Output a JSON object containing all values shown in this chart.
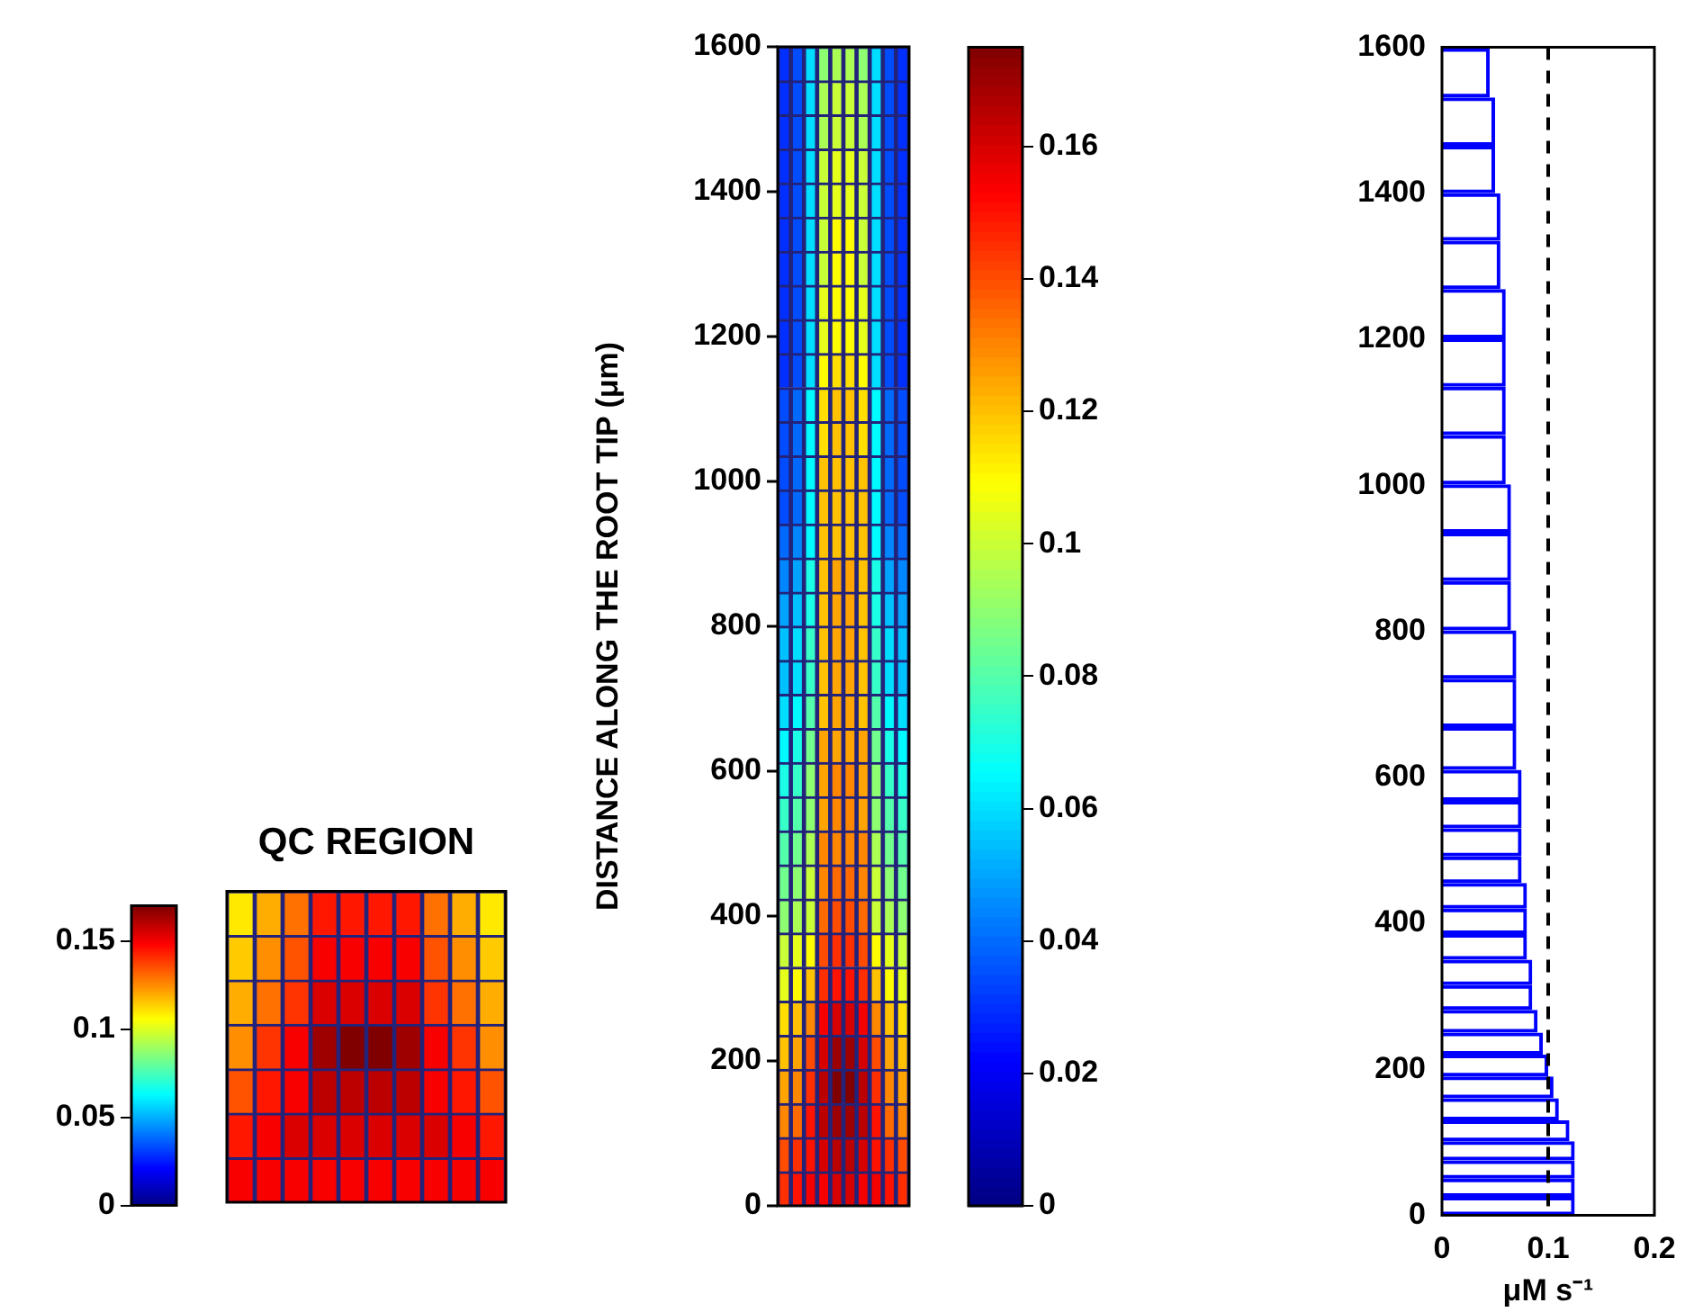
{
  "chart_data": [
    {
      "type": "heatmap",
      "title": "QC REGION",
      "categories": [
        null,
        null,
        null,
        null,
        null,
        null,
        null,
        null,
        null,
        null
      ],
      "y_categories": [
        null,
        null,
        null,
        null,
        null,
        null,
        null
      ],
      "cells": [
        [
          0.11,
          0.12,
          0.13,
          0.145,
          0.145,
          0.145,
          0.145,
          0.13,
          0.12,
          0.11
        ],
        [
          0.115,
          0.125,
          0.135,
          0.15,
          0.15,
          0.15,
          0.15,
          0.135,
          0.125,
          0.115
        ],
        [
          0.12,
          0.13,
          0.14,
          0.155,
          0.155,
          0.155,
          0.155,
          0.14,
          0.13,
          0.12
        ],
        [
          0.125,
          0.14,
          0.15,
          0.165,
          0.17,
          0.17,
          0.165,
          0.15,
          0.14,
          0.125
        ],
        [
          0.135,
          0.145,
          0.15,
          0.16,
          0.16,
          0.16,
          0.16,
          0.15,
          0.145,
          0.135
        ],
        [
          0.145,
          0.15,
          0.155,
          0.155,
          0.155,
          0.155,
          0.155,
          0.155,
          0.15,
          0.145
        ],
        [
          0.15,
          0.15,
          0.15,
          0.15,
          0.15,
          0.15,
          0.15,
          0.15,
          0.15,
          0.15
        ]
      ],
      "clim": [
        0,
        0.17
      ],
      "cticks": [
        0,
        0.05,
        0.1,
        0.15
      ]
    },
    {
      "type": "heatmap",
      "ylabel": "DISTANCE ALONG THE ROOT TIP (μm)",
      "annotations": [
        "1600",
        "1400",
        "1200",
        "1000",
        "800",
        "600",
        "400",
        "200",
        "0"
      ],
      "categories": [
        null,
        null,
        null,
        null,
        null,
        null,
        null,
        null,
        null,
        null
      ],
      "y_categories": [
        null,
        null,
        null,
        null,
        null,
        null,
        null,
        null,
        null,
        null,
        null,
        null,
        null,
        null,
        null,
        null,
        null,
        null,
        null,
        null,
        null,
        null,
        null,
        null,
        null,
        null,
        null,
        null,
        null,
        null,
        null,
        null,
        null,
        null
      ],
      "cells": [
        [
          0.03,
          0.035,
          0.06,
          0.09,
          0.095,
          0.095,
          0.09,
          0.06,
          0.035,
          0.03
        ],
        [
          0.03,
          0.035,
          0.06,
          0.095,
          0.1,
          0.1,
          0.095,
          0.06,
          0.035,
          0.03
        ],
        [
          0.03,
          0.035,
          0.06,
          0.095,
          0.1,
          0.1,
          0.095,
          0.06,
          0.035,
          0.03
        ],
        [
          0.03,
          0.035,
          0.06,
          0.1,
          0.105,
          0.105,
          0.1,
          0.06,
          0.035,
          0.03
        ],
        [
          0.03,
          0.035,
          0.06,
          0.1,
          0.105,
          0.105,
          0.1,
          0.06,
          0.035,
          0.03
        ],
        [
          0.03,
          0.035,
          0.06,
          0.1,
          0.11,
          0.11,
          0.1,
          0.06,
          0.035,
          0.03
        ],
        [
          0.03,
          0.035,
          0.06,
          0.1,
          0.11,
          0.11,
          0.1,
          0.06,
          0.035,
          0.03
        ],
        [
          0.03,
          0.035,
          0.06,
          0.105,
          0.11,
          0.11,
          0.105,
          0.06,
          0.035,
          0.03
        ],
        [
          0.03,
          0.035,
          0.06,
          0.105,
          0.11,
          0.11,
          0.105,
          0.06,
          0.035,
          0.03
        ],
        [
          0.03,
          0.035,
          0.06,
          0.11,
          0.115,
          0.115,
          0.11,
          0.06,
          0.035,
          0.03
        ],
        [
          0.035,
          0.04,
          0.065,
          0.115,
          0.12,
          0.12,
          0.115,
          0.065,
          0.04,
          0.035
        ],
        [
          0.035,
          0.04,
          0.065,
          0.115,
          0.12,
          0.12,
          0.115,
          0.065,
          0.04,
          0.035
        ],
        [
          0.035,
          0.04,
          0.065,
          0.12,
          0.12,
          0.12,
          0.12,
          0.065,
          0.04,
          0.035
        ],
        [
          0.035,
          0.04,
          0.065,
          0.12,
          0.12,
          0.12,
          0.12,
          0.065,
          0.04,
          0.035
        ],
        [
          0.04,
          0.045,
          0.065,
          0.12,
          0.12,
          0.12,
          0.12,
          0.065,
          0.045,
          0.04
        ],
        [
          0.045,
          0.05,
          0.07,
          0.12,
          0.125,
          0.125,
          0.12,
          0.07,
          0.05,
          0.045
        ],
        [
          0.05,
          0.055,
          0.07,
          0.12,
          0.125,
          0.125,
          0.12,
          0.07,
          0.055,
          0.05
        ],
        [
          0.055,
          0.06,
          0.075,
          0.12,
          0.125,
          0.125,
          0.12,
          0.075,
          0.06,
          0.055
        ],
        [
          0.055,
          0.06,
          0.075,
          0.12,
          0.125,
          0.125,
          0.12,
          0.075,
          0.06,
          0.055
        ],
        [
          0.06,
          0.065,
          0.08,
          0.12,
          0.125,
          0.125,
          0.12,
          0.08,
          0.065,
          0.06
        ],
        [
          0.065,
          0.07,
          0.085,
          0.125,
          0.125,
          0.125,
          0.125,
          0.085,
          0.07,
          0.065
        ],
        [
          0.07,
          0.075,
          0.09,
          0.125,
          0.13,
          0.13,
          0.125,
          0.09,
          0.075,
          0.07
        ],
        [
          0.075,
          0.08,
          0.09,
          0.125,
          0.13,
          0.13,
          0.125,
          0.09,
          0.08,
          0.075
        ],
        [
          0.08,
          0.085,
          0.095,
          0.13,
          0.13,
          0.13,
          0.13,
          0.095,
          0.085,
          0.08
        ],
        [
          0.085,
          0.09,
          0.1,
          0.13,
          0.135,
          0.135,
          0.13,
          0.1,
          0.09,
          0.085
        ],
        [
          0.09,
          0.095,
          0.1,
          0.135,
          0.14,
          0.14,
          0.135,
          0.1,
          0.095,
          0.09
        ],
        [
          0.1,
          0.105,
          0.11,
          0.14,
          0.145,
          0.145,
          0.14,
          0.11,
          0.105,
          0.1
        ],
        [
          0.105,
          0.11,
          0.12,
          0.145,
          0.15,
          0.15,
          0.145,
          0.12,
          0.11,
          0.105
        ],
        [
          0.115,
          0.12,
          0.13,
          0.155,
          0.16,
          0.16,
          0.155,
          0.13,
          0.12,
          0.115
        ],
        [
          0.12,
          0.125,
          0.14,
          0.16,
          0.17,
          0.17,
          0.16,
          0.14,
          0.125,
          0.12
        ],
        [
          0.125,
          0.13,
          0.145,
          0.165,
          0.175,
          0.175,
          0.165,
          0.145,
          0.13,
          0.125
        ],
        [
          0.13,
          0.135,
          0.15,
          0.165,
          0.17,
          0.17,
          0.165,
          0.15,
          0.135,
          0.13
        ],
        [
          0.14,
          0.145,
          0.15,
          0.16,
          0.165,
          0.165,
          0.16,
          0.15,
          0.145,
          0.14
        ],
        [
          0.145,
          0.15,
          0.155,
          0.155,
          0.16,
          0.16,
          0.155,
          0.155,
          0.15,
          0.145
        ]
      ],
      "clim": [
        0,
        0.175
      ],
      "cticks": [
        0,
        0.02,
        0.04,
        0.06,
        0.08,
        0.1,
        0.12,
        0.14,
        0.16
      ]
    },
    {
      "type": "bar",
      "orientation": "horizontal",
      "xlabel": "μM s⁻¹",
      "color": "#0000ff",
      "x": [
        12.5,
        37.5,
        62.5,
        87.5,
        115,
        145,
        175,
        205,
        235,
        265,
        297.5,
        332.5,
        367.5,
        402.5,
        437.5,
        472.5,
        510,
        550,
        585,
        635,
        702.5,
        767.5,
        835,
        902.5,
        967.5,
        1035,
        1102.5,
        1167.5,
        1235,
        1302.5,
        1367.5,
        1432.5,
        1497.5,
        1565
      ],
      "values": [
        0.125,
        0.125,
        0.125,
        0.125,
        0.12,
        0.11,
        0.105,
        0.1,
        0.095,
        0.09,
        0.085,
        0.085,
        0.08,
        0.08,
        0.08,
        0.075,
        0.075,
        0.075,
        0.075,
        0.07,
        0.07,
        0.07,
        0.065,
        0.065,
        0.065,
        0.06,
        0.06,
        0.06,
        0.06,
        0.055,
        0.055,
        0.05,
        0.05,
        0.045
      ],
      "xlim": [
        0,
        0.2
      ],
      "xticks": [
        0,
        0.1,
        0.2
      ],
      "ylim": [
        0,
        1600
      ],
      "yticks": [
        0,
        200,
        400,
        600,
        800,
        1000,
        1200,
        1400,
        1600
      ],
      "ref_lines": [
        {
          "axis": "x",
          "value": 0.1,
          "color": "#000000",
          "line_style": "dashed"
        }
      ]
    }
  ]
}
